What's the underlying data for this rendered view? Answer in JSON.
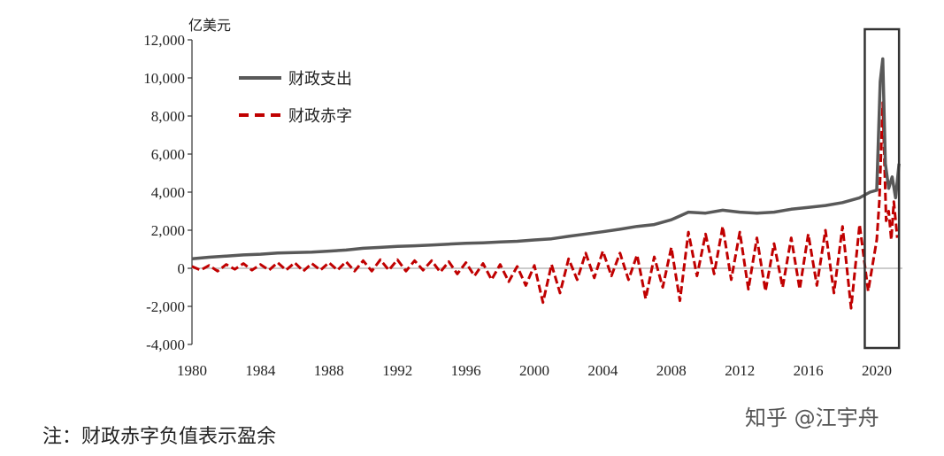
{
  "chart_data": {
    "type": "line",
    "title": "",
    "ylabel": "亿美元",
    "xlabel": "",
    "ylim": [
      -4000,
      12000
    ],
    "xlim": [
      1980,
      2021.5
    ],
    "yticks": [
      12000,
      10000,
      8000,
      6000,
      4000,
      2000,
      0,
      -2000,
      -4000
    ],
    "ytick_labels": [
      "12,000",
      "10,000",
      "8,000",
      "6,000",
      "4,000",
      "2,000",
      "0",
      "-2,000",
      "-4,000"
    ],
    "xticks": [
      1980,
      1984,
      1988,
      1992,
      1996,
      2000,
      2004,
      2008,
      2012,
      2016,
      2020
    ],
    "xtick_labels": [
      "1980",
      "1984",
      "1988",
      "1992",
      "1996",
      "2000",
      "2004",
      "2008",
      "2012",
      "2016",
      "2020"
    ],
    "legend_position": "top-left",
    "grid": false,
    "annotation_box_years": [
      2019.3,
      2021.3
    ],
    "series": [
      {
        "name": "财政支出",
        "color": "#595959",
        "style": "solid",
        "points": [
          [
            1980,
            500
          ],
          [
            1981,
            580
          ],
          [
            1982,
            640
          ],
          [
            1983,
            700
          ],
          [
            1984,
            740
          ],
          [
            1985,
            800
          ],
          [
            1986,
            830
          ],
          [
            1987,
            850
          ],
          [
            1988,
            900
          ],
          [
            1989,
            960
          ],
          [
            1990,
            1050
          ],
          [
            1991,
            1100
          ],
          [
            1992,
            1150
          ],
          [
            1993,
            1180
          ],
          [
            1994,
            1220
          ],
          [
            1995,
            1270
          ],
          [
            1996,
            1310
          ],
          [
            1997,
            1340
          ],
          [
            1998,
            1380
          ],
          [
            1999,
            1420
          ],
          [
            2000,
            1490
          ],
          [
            2001,
            1550
          ],
          [
            2002,
            1680
          ],
          [
            2003,
            1800
          ],
          [
            2004,
            1920
          ],
          [
            2005,
            2050
          ],
          [
            2006,
            2200
          ],
          [
            2007,
            2300
          ],
          [
            2008,
            2550
          ],
          [
            2009,
            2950
          ],
          [
            2010,
            2900
          ],
          [
            2011,
            3050
          ],
          [
            2012,
            2950
          ],
          [
            2013,
            2900
          ],
          [
            2014,
            2950
          ],
          [
            2015,
            3100
          ],
          [
            2016,
            3200
          ],
          [
            2017,
            3300
          ],
          [
            2018,
            3450
          ],
          [
            2019,
            3700
          ],
          [
            2019.6,
            4000
          ],
          [
            2020.0,
            4100
          ],
          [
            2020.2,
            9800
          ],
          [
            2020.35,
            11000
          ],
          [
            2020.5,
            5500
          ],
          [
            2020.7,
            4200
          ],
          [
            2020.9,
            4800
          ],
          [
            2021.1,
            3700
          ],
          [
            2021.3,
            5500
          ]
        ]
      },
      {
        "name": "财政赤字",
        "color": "#c00000",
        "style": "dashed",
        "values_from": 1980,
        "step": 0.5,
        "values": [
          100,
          -100,
          150,
          -150,
          200,
          -50,
          250,
          -100,
          200,
          -100,
          300,
          -100,
          300,
          -150,
          250,
          -100,
          300,
          -100,
          350,
          -150,
          400,
          -150,
          450,
          -100,
          450,
          -150,
          400,
          -100,
          400,
          -200,
          350,
          -300,
          300,
          -400,
          250,
          -600,
          200,
          -700,
          100,
          -900,
          150,
          -1800,
          200,
          -1300,
          500,
          -600,
          800,
          -500,
          900,
          -400,
          800,
          -600,
          700,
          -1600,
          600,
          -1000,
          1100,
          -1700,
          1900,
          -400,
          1800,
          -300,
          2200,
          -600,
          1900,
          -1100,
          1600,
          -1200,
          1300,
          -1000,
          1600,
          -1100,
          1800,
          -900,
          2000,
          -1300,
          2200,
          -2100,
          2300,
          -1200
        ],
        "tail_points": [
          [
            2020.0,
            1500
          ],
          [
            2020.15,
            3500
          ],
          [
            2020.35,
            8700
          ],
          [
            2020.55,
            2500
          ],
          [
            2020.7,
            3000
          ],
          [
            2020.85,
            1500
          ],
          [
            2021.0,
            3500
          ],
          [
            2021.2,
            1600
          ]
        ]
      }
    ]
  },
  "note": "注：财政赤字负值表示盈余",
  "watermark": "知乎 @江宇舟"
}
